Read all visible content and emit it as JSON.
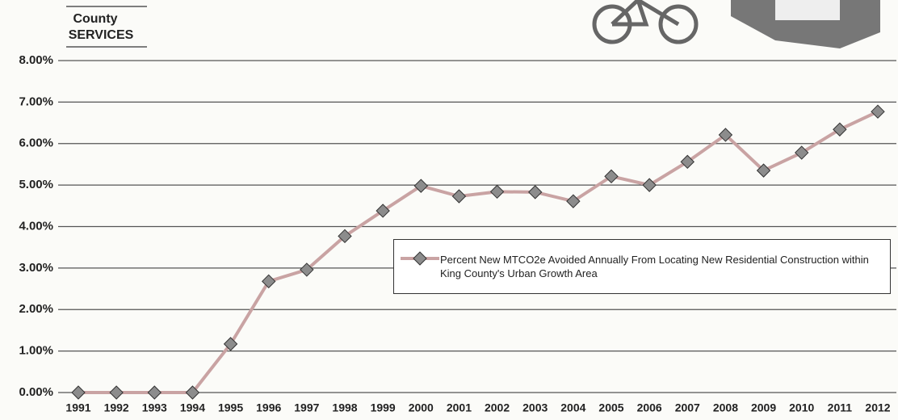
{
  "header": {
    "lines": [
      "County",
      "SERVICES"
    ]
  },
  "chart_data": {
    "type": "line",
    "categories": [
      "1991",
      "1992",
      "1993",
      "1994",
      "1995",
      "1996",
      "1997",
      "1998",
      "1999",
      "2000",
      "2001",
      "2002",
      "2003",
      "2004",
      "2005",
      "2006",
      "2007",
      "2008",
      "2009",
      "2010",
      "2011",
      "2012"
    ],
    "series": [
      {
        "name": "Percent New MTCO2e Avoided Annually From Locating New Residential Construction within King County's Urban Growth Area",
        "color": "#c9a3a3",
        "marker_color": "#8c8c8c",
        "values": [
          0,
          0,
          0,
          0,
          1.17,
          2.68,
          2.96,
          3.77,
          4.38,
          4.98,
          4.73,
          4.84,
          4.83,
          4.61,
          5.21,
          5.0,
          5.56,
          6.21,
          5.35,
          5.78,
          6.34,
          6.77
        ]
      }
    ],
    "ylim": [
      0,
      8
    ],
    "yticks": [
      {
        "value": 0,
        "label": "0.00%"
      },
      {
        "value": 1,
        "label": "1.00%"
      },
      {
        "value": 2,
        "label": "2.00%"
      },
      {
        "value": 3,
        "label": "3.00%"
      },
      {
        "value": 4,
        "label": "4.00%"
      },
      {
        "value": 5,
        "label": "5.00%"
      },
      {
        "value": 6,
        "label": "6.00%"
      },
      {
        "value": 7,
        "label": "7.00%"
      },
      {
        "value": 8,
        "label": "8.00%"
      }
    ],
    "grid": true,
    "legend": "right"
  }
}
